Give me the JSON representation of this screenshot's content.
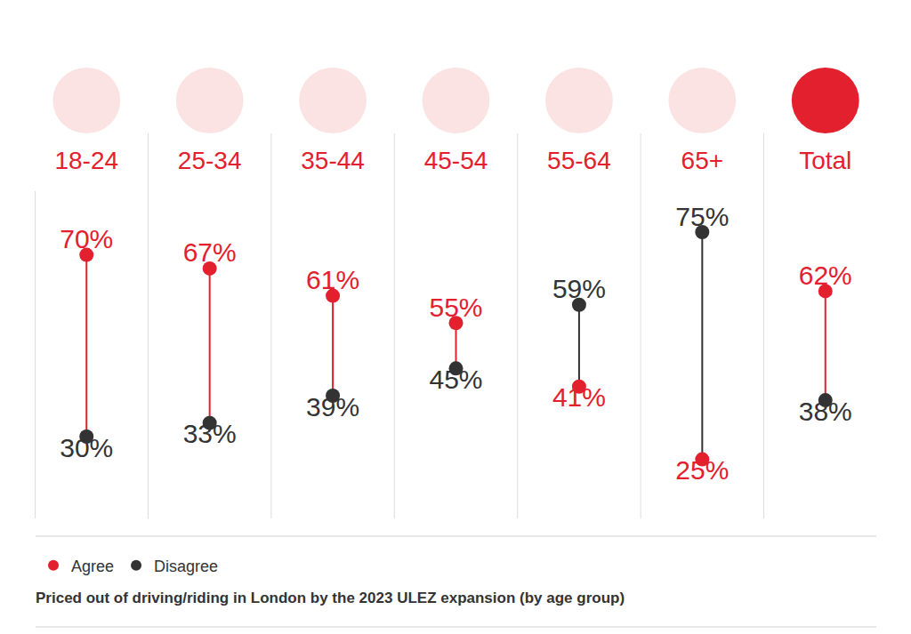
{
  "chart_data": {
    "type": "dumbbell",
    "title": "Priced out of driving/riding in London by the 2023 ULEZ expansion (by age group)",
    "categories": [
      "18-24",
      "25-34",
      "35-44",
      "45-54",
      "55-64",
      "65+",
      "Total"
    ],
    "series": [
      {
        "name": "Agree",
        "color": "#e3202e",
        "values": [
          70,
          67,
          61,
          55,
          41,
          25,
          62
        ],
        "value_labels": [
          "70%",
          "67%",
          "61%",
          "55%",
          "41%",
          "25%",
          "62%"
        ]
      },
      {
        "name": "Disagree",
        "color": "#333333",
        "values": [
          30,
          33,
          39,
          45,
          59,
          75,
          38
        ],
        "value_labels": [
          "30%",
          "33%",
          "39%",
          "45%",
          "59%",
          "75%",
          "38%"
        ]
      }
    ],
    "ylim": [
      12,
      84
    ],
    "data_labels": true,
    "tick_labels": "x",
    "grid": false,
    "legend": "bottom left"
  }
}
